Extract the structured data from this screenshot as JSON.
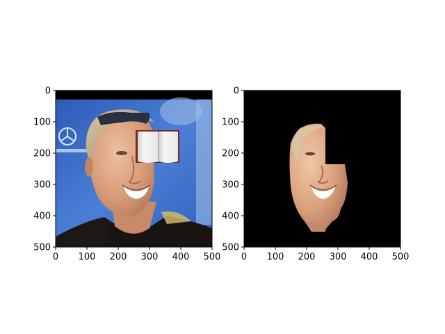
{
  "figure": {
    "panels": [
      {
        "id": "original",
        "description_icon": "face-photo-with-book-occluder",
        "x_ticks": [
          "0",
          "100",
          "200",
          "300",
          "400",
          "500"
        ],
        "y_ticks": [
          "0",
          "100",
          "200",
          "300",
          "400",
          "500"
        ],
        "xlim": [
          0,
          500
        ],
        "ylim": [
          0,
          500
        ]
      },
      {
        "id": "segmented",
        "description_icon": "face-segmentation-mask",
        "x_ticks": [
          "0",
          "100",
          "200",
          "300",
          "400",
          "500"
        ],
        "y_ticks": [
          "0",
          "100",
          "200",
          "300",
          "400",
          "500"
        ],
        "xlim": [
          0,
          500
        ],
        "ylim": [
          0,
          500
        ]
      }
    ],
    "colors": {
      "background": "#ffffff",
      "mask_background": "#000000",
      "sky_blue": "#3f6fc8",
      "skin": "#d9a27f",
      "shirt": "#1a1614",
      "book_page": "#f3f3f3",
      "book_cover": "#7a2a1e"
    }
  }
}
